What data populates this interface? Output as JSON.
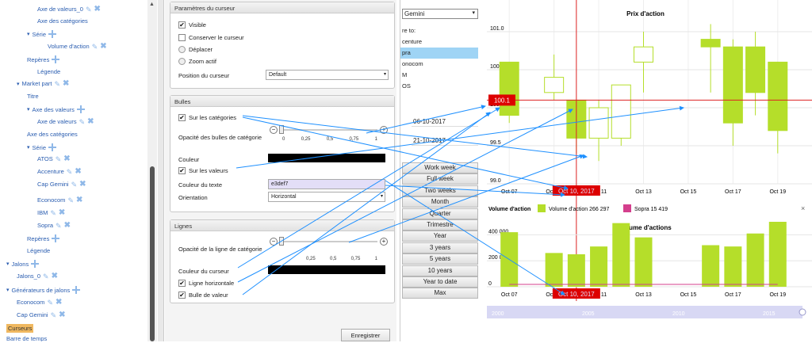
{
  "tree": {
    "items": [
      {
        "label": "Axe de valeurs_0",
        "level": 3,
        "y": 12,
        "icons": [
          "pen",
          "x"
        ]
      },
      {
        "label": "Axe des catégories",
        "level": 3,
        "y": 27,
        "icons": []
      },
      {
        "label": "Série",
        "level": 2,
        "y": 43,
        "icons": [
          "plus"
        ],
        "expand": true
      },
      {
        "label": "Volume d'action",
        "level": 4,
        "y": 59,
        "icons": [
          "pen",
          "x"
        ]
      },
      {
        "label": "Repères",
        "level": 2,
        "y": 75,
        "icons": [
          "plus"
        ]
      },
      {
        "label": "Légende",
        "level": 3,
        "y": 91,
        "icons": []
      },
      {
        "label": "Market part",
        "level": 1,
        "y": 106,
        "icons": [
          "pen",
          "x"
        ],
        "expand": true
      },
      {
        "label": "Titre",
        "level": 2,
        "y": 122,
        "icons": []
      },
      {
        "label": "Axe des valeurs",
        "level": 2,
        "y": 138,
        "icons": [
          "plus"
        ],
        "expand": true
      },
      {
        "label": "Axe de valeurs",
        "level": 3,
        "y": 154,
        "icons": [
          "pen",
          "x"
        ]
      },
      {
        "label": "Axe des catégories",
        "level": 2,
        "y": 170,
        "icons": []
      },
      {
        "label": "Série",
        "level": 2,
        "y": 186,
        "icons": [
          "plus"
        ],
        "expand": true
      },
      {
        "label": "ATOS",
        "level": 3,
        "y": 201,
        "icons": [
          "pen",
          "x"
        ]
      },
      {
        "label": "Accenture",
        "level": 3,
        "y": 217,
        "icons": [
          "pen",
          "x"
        ]
      },
      {
        "label": "Cap Gemini",
        "level": 3,
        "y": 233,
        "icons": [
          "pen",
          "x"
        ]
      },
      {
        "label": "Econocom",
        "level": 3,
        "y": 253,
        "icons": [
          "pen",
          "x"
        ]
      },
      {
        "label": "IBM",
        "level": 3,
        "y": 269,
        "icons": [
          "pen",
          "x"
        ]
      },
      {
        "label": "Sopra",
        "level": 3,
        "y": 285,
        "icons": [
          "pen",
          "x"
        ]
      },
      {
        "label": "Repères",
        "level": 2,
        "y": 301,
        "icons": [
          "plus"
        ]
      },
      {
        "label": "Légende",
        "level": 2,
        "y": 317,
        "icons": []
      },
      {
        "label": "Jalons",
        "level": 0,
        "y": 333,
        "icons": [
          "plus"
        ],
        "expand": true
      },
      {
        "label": "Jalons_0",
        "level": 1,
        "y": 349,
        "icons": [
          "pen",
          "x"
        ]
      },
      {
        "label": "Générateurs de jalons",
        "level": 0,
        "y": 366,
        "icons": [
          "plus"
        ],
        "expand": true
      },
      {
        "label": "Econocom",
        "level": 1,
        "y": 382,
        "icons": [
          "pen",
          "x"
        ]
      },
      {
        "label": "Cap Gemini",
        "level": 1,
        "y": 398,
        "icons": [
          "pen",
          "x"
        ]
      },
      {
        "label": "Curseurs",
        "level": 0,
        "y": 414,
        "icons": [],
        "selected": true
      },
      {
        "label": "Barre de temps",
        "level": 0,
        "y": 428,
        "icons": []
      }
    ]
  },
  "cursor_panel": {
    "title": "Paramètres du curseur",
    "visible": "Visible",
    "keep": "Conserver le curseur",
    "move": "Déplacer",
    "zoom": "Zoom actif",
    "position_label": "Position du curseur",
    "position_value": "Default"
  },
  "bubbles_panel": {
    "title": "Bulles",
    "on_categories": "Sur les catégories",
    "opacity_label": "Opacité des bulles de catégorie",
    "ticks": [
      "0",
      "0,25",
      "0,5",
      "0,75",
      "1"
    ],
    "color_label": "Couleur",
    "on_values": "Sur les valeurs",
    "text_color_label": "Couleur du texte",
    "text_color_value": "e3def7",
    "orientation_label": "Orientation",
    "orientation_value": "Horizontal"
  },
  "lines_panel": {
    "title": "Lignes",
    "opacity_label": "Opacité de la ligne de catégorie",
    "ticks": [
      "0,25",
      "0,5",
      "0,75",
      "1"
    ],
    "cursor_color_label": "Couleur du curseur",
    "horizontal_line": "Ligne horizontale",
    "value_bubble": "Bulle de valeur"
  },
  "save_label": "Enregistrer",
  "mid": {
    "select_value": "Gemini",
    "compare_label": "re to:",
    "compare_items": [
      "centure",
      "pra",
      "onocom",
      "M",
      "OS"
    ],
    "compare_selected": 1,
    "date_from": "06-10-2017",
    "date_to": "21-10-2017",
    "ranges": [
      "Work week",
      "Full week",
      "Two weeks",
      "Month",
      "Quarter",
      "Trimestre",
      "Year",
      "3 years",
      "5 years",
      "10 years",
      "Year to date",
      "Max"
    ]
  },
  "chart_data": [
    {
      "type": "candlestick",
      "title": "Prix d'action",
      "x_ticks": [
        "Oct 07",
        "Oct 09",
        "Oct 11",
        "Oct 13",
        "Oct 15",
        "Oct 17",
        "Oct 19"
      ],
      "y_ticks": [
        "101.0",
        "100.5",
        "100.0",
        "99.5",
        "99.0"
      ],
      "ylim": [
        99.0,
        101.0
      ],
      "cursor_value": "100.1",
      "cursor_date": "Oct 10, 2017",
      "candles": [
        {
          "x": "Oct 07",
          "open": 100.6,
          "close": 99.9,
          "high": 100.6,
          "low": 99.8
        },
        {
          "x": "Oct 09",
          "open": 100.2,
          "close": 100.4,
          "high": 100.7,
          "low": 100.1
        },
        {
          "x": "Oct 10",
          "open": 100.1,
          "close": 99.6,
          "high": 100.1,
          "low": 99.4
        },
        {
          "x": "Oct 11",
          "open": 99.6,
          "close": 100.0,
          "high": 100.1,
          "low": 99.3
        },
        {
          "x": "Oct 12",
          "open": 99.6,
          "close": 100.3,
          "high": 100.3,
          "low": 99.5
        },
        {
          "x": "Oct 13",
          "open": 100.6,
          "close": 100.8,
          "high": 101.0,
          "low": 100.2
        },
        {
          "x": "Oct 16",
          "open": 100.9,
          "close": 100.8,
          "high": 101.1,
          "low": 100.2
        },
        {
          "x": "Oct 17",
          "open": 100.8,
          "close": 99.8,
          "high": 100.9,
          "low": 99.5
        },
        {
          "x": "Oct 18",
          "open": 100.8,
          "close": 100.2,
          "high": 101.0,
          "low": 99.9
        },
        {
          "x": "Oct 19",
          "open": 100.6,
          "close": 99.7,
          "high": 100.6,
          "low": 99.4
        }
      ]
    },
    {
      "type": "bar",
      "title": "Volume d'actions",
      "legend_title": "Volume d'action",
      "legend": [
        {
          "name": "Volume d'action",
          "value": "266 297",
          "color": "#b5de2a"
        },
        {
          "name": "Sopra",
          "value": "15 419",
          "color": "#d43f8d"
        }
      ],
      "y_ticks": [
        "400 000",
        "200 000",
        "0"
      ],
      "ylim": [
        0,
        500000
      ],
      "x_ticks": [
        "Oct 07",
        "Oct 09",
        "Oct 11",
        "Oct 13",
        "Oct 15",
        "Oct 17",
        "Oct 19"
      ],
      "cursor_date": "Oct 10, 2017",
      "bars": [
        {
          "x": "Oct 07",
          "value": 420000
        },
        {
          "x": "Oct 09",
          "value": 260000
        },
        {
          "x": "Oct 10",
          "value": 250000
        },
        {
          "x": "Oct 11",
          "value": 310000
        },
        {
          "x": "Oct 12",
          "value": 490000
        },
        {
          "x": "Oct 13",
          "value": 380000
        },
        {
          "x": "Oct 16",
          "value": 320000
        },
        {
          "x": "Oct 17",
          "value": 310000
        },
        {
          "x": "Oct 18",
          "value": 410000
        },
        {
          "x": "Oct 19",
          "value": 500000
        }
      ],
      "timeline_ticks": [
        "2000",
        "2005",
        "2010",
        "2015"
      ]
    }
  ]
}
